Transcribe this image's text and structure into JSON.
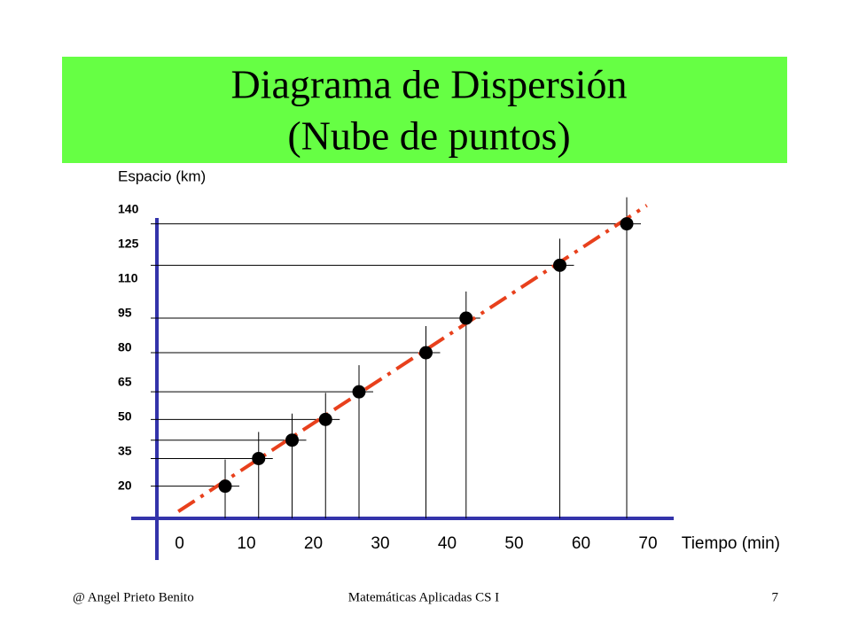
{
  "chart_data": {
    "type": "scatter",
    "title": "Diagrama de Dispersión",
    "subtitle": "(Nube de puntos)",
    "y_label": "Espacio (km)",
    "x_label": "Tiempo (min)",
    "x": [
      10,
      15,
      20,
      25,
      30,
      40,
      46,
      60,
      70
    ],
    "values": [
      20,
      32,
      40,
      49,
      61,
      78,
      93,
      116,
      134
    ],
    "color": "#000000",
    "trendline": {
      "x": [
        3,
        73
      ],
      "values": [
        9,
        142
      ],
      "color": "#e8401c"
    },
    "xlim": [
      0,
      70
    ],
    "ylim": [
      6,
      140
    ],
    "xticks": [
      0,
      10,
      20,
      30,
      40,
      50,
      60,
      70
    ],
    "yticks": [
      20,
      35,
      50,
      65,
      80,
      95,
      110,
      125,
      140
    ]
  },
  "footer": {
    "author": "@   Angel Prieto Benito",
    "course": "Matemáticas Aplicadas CS I",
    "page": "7"
  }
}
